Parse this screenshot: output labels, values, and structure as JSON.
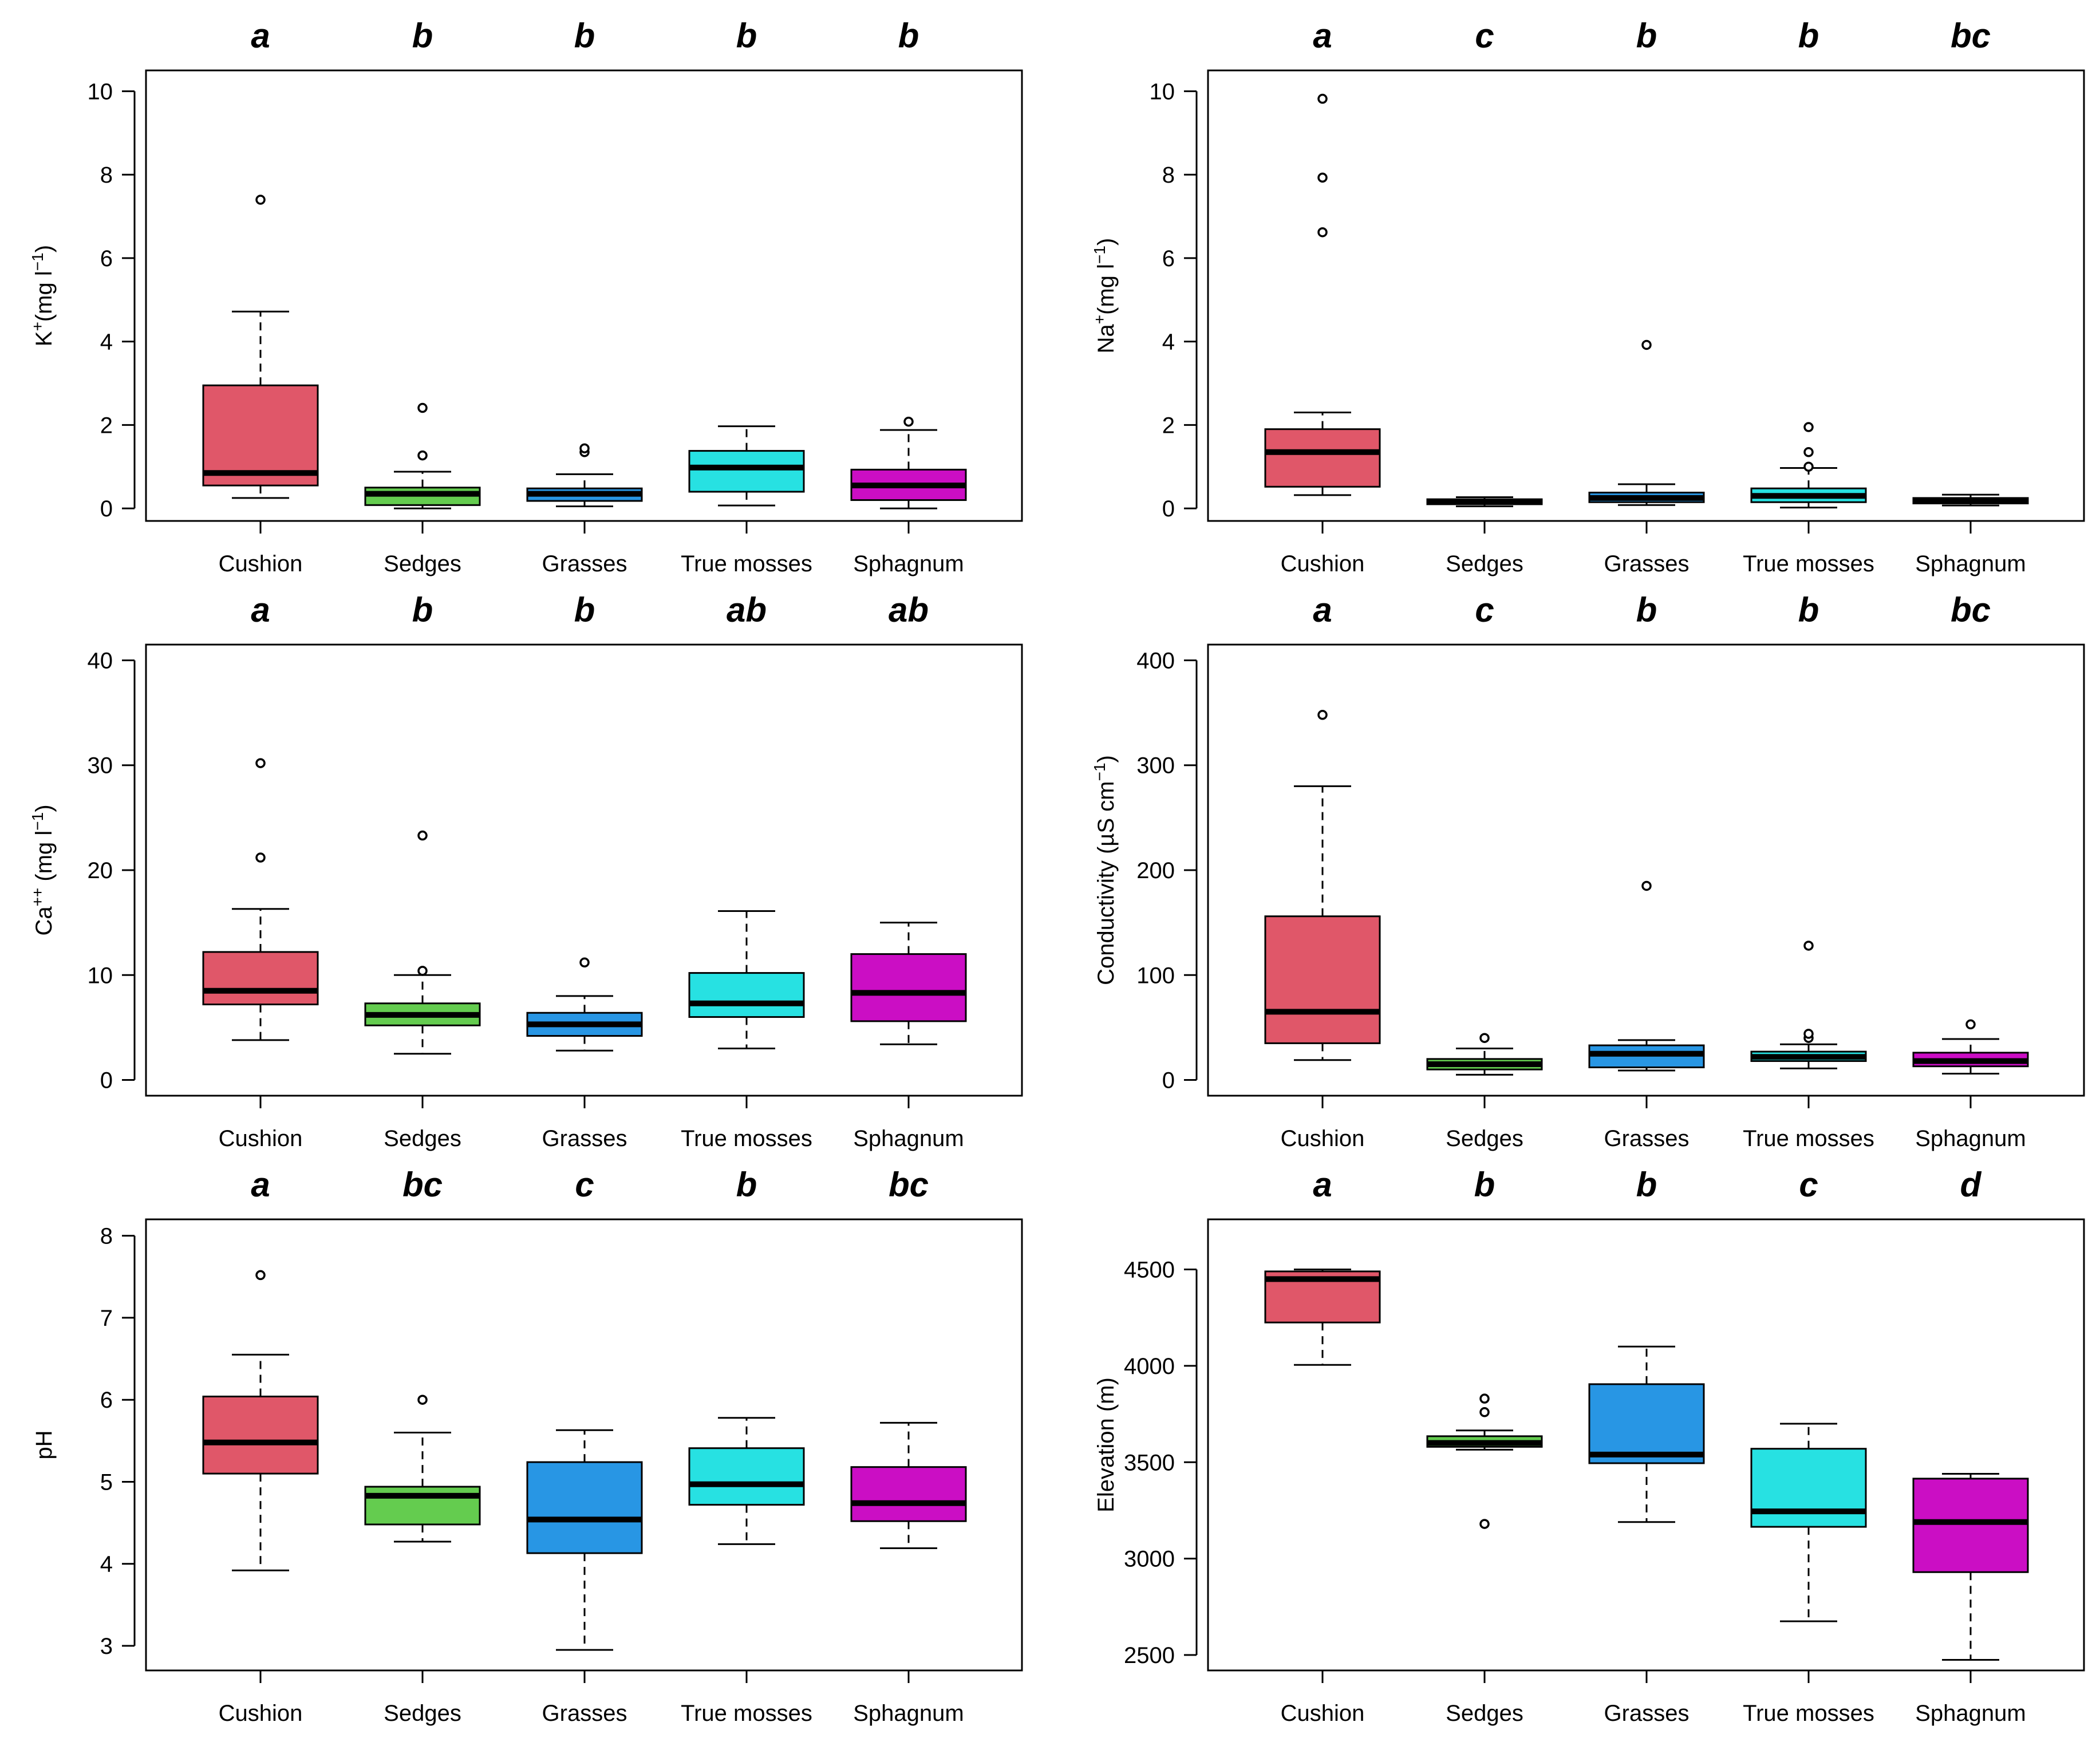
{
  "categories": [
    "Cushion",
    "Sedges",
    "Grasses",
    "True mosses",
    "Sphagnum"
  ],
  "colors": [
    "#e05769",
    "#64cc4f",
    "#2896e4",
    "#27e1e2",
    "#cb0ec4"
  ],
  "chart_data": [
    {
      "type": "boxplot",
      "id": "potassium",
      "ylabel": "K+(mg l-1)",
      "ylabel_parts": [
        "K",
        "+",
        "(mg l",
        "−1",
        ")"
      ],
      "ylim": [
        -0.3,
        10.5
      ],
      "yticks": [
        0,
        2,
        4,
        6,
        8,
        10
      ],
      "ytick_labels": [
        "0",
        "2",
        "4",
        "6",
        "8",
        "10"
      ],
      "letters": [
        "a",
        "b",
        "b",
        "b",
        "b"
      ],
      "boxes": [
        {
          "category": "Cushion",
          "whisker_low": 0.25,
          "q1": 0.55,
          "median": 0.85,
          "q3": 2.95,
          "whisker_high": 4.72,
          "outliers": [
            7.4
          ]
        },
        {
          "category": "Sedges",
          "whisker_low": 0.0,
          "q1": 0.08,
          "median": 0.35,
          "q3": 0.5,
          "whisker_high": 0.88,
          "outliers": [
            1.27,
            2.41
          ]
        },
        {
          "category": "Grasses",
          "whisker_low": 0.05,
          "q1": 0.18,
          "median": 0.35,
          "q3": 0.48,
          "whisker_high": 0.82,
          "outliers": [
            1.35,
            1.44
          ]
        },
        {
          "category": "True mosses",
          "whisker_low": 0.07,
          "q1": 0.4,
          "median": 0.98,
          "q3": 1.38,
          "whisker_high": 1.97,
          "outliers": []
        },
        {
          "category": "Sphagnum",
          "whisker_low": 0.0,
          "q1": 0.2,
          "median": 0.55,
          "q3": 0.93,
          "whisker_high": 1.88,
          "outliers": [
            2.08
          ]
        }
      ]
    },
    {
      "type": "boxplot",
      "id": "sodium",
      "ylabel": "Na+(mg l-1)",
      "ylabel_parts": [
        "Na",
        "+",
        "(mg l",
        "−1",
        ")"
      ],
      "ylim": [
        -0.3,
        10.5
      ],
      "yticks": [
        0,
        2,
        4,
        6,
        8,
        10
      ],
      "ytick_labels": [
        "0",
        "2",
        "4",
        "6",
        "8",
        "10"
      ],
      "letters": [
        "a",
        "c",
        "b",
        "b",
        "bc"
      ],
      "boxes": [
        {
          "category": "Cushion",
          "whisker_low": 0.32,
          "q1": 0.52,
          "median": 1.35,
          "q3": 1.9,
          "whisker_high": 2.3,
          "outliers": [
            6.62,
            7.93,
            9.82
          ]
        },
        {
          "category": "Sedges",
          "whisker_low": 0.05,
          "q1": 0.1,
          "median": 0.16,
          "q3": 0.22,
          "whisker_high": 0.27,
          "outliers": []
        },
        {
          "category": "Grasses",
          "whisker_low": 0.08,
          "q1": 0.15,
          "median": 0.25,
          "q3": 0.38,
          "whisker_high": 0.58,
          "outliers": [
            3.92
          ]
        },
        {
          "category": "True mosses",
          "whisker_low": 0.02,
          "q1": 0.15,
          "median": 0.3,
          "q3": 0.48,
          "whisker_high": 0.97,
          "outliers": [
            1.0,
            1.35,
            1.95
          ]
        },
        {
          "category": "Sphagnum",
          "whisker_low": 0.07,
          "q1": 0.12,
          "median": 0.18,
          "q3": 0.25,
          "whisker_high": 0.33,
          "outliers": []
        }
      ]
    },
    {
      "type": "boxplot",
      "id": "calcium",
      "ylabel": "Ca++ (mg l-1)",
      "ylabel_parts": [
        "Ca",
        "++",
        " (mg l",
        "−1",
        ")"
      ],
      "ylim": [
        -1.5,
        41.5
      ],
      "yticks": [
        0,
        10,
        20,
        30,
        40
      ],
      "ytick_labels": [
        "0",
        "10",
        "20",
        "30",
        "40"
      ],
      "letters": [
        "a",
        "b",
        "b",
        "ab",
        "ab"
      ],
      "boxes": [
        {
          "category": "Cushion",
          "whisker_low": 3.8,
          "q1": 7.2,
          "median": 8.5,
          "q3": 12.2,
          "whisker_high": 16.3,
          "outliers": [
            21.2,
            30.2
          ]
        },
        {
          "category": "Sedges",
          "whisker_low": 2.5,
          "q1": 5.2,
          "median": 6.2,
          "q3": 7.3,
          "whisker_high": 10.0,
          "outliers": [
            10.4,
            23.3
          ]
        },
        {
          "category": "Grasses",
          "whisker_low": 2.8,
          "q1": 4.2,
          "median": 5.3,
          "q3": 6.4,
          "whisker_high": 8.0,
          "outliers": [
            11.2
          ]
        },
        {
          "category": "True mosses",
          "whisker_low": 3.0,
          "q1": 6.0,
          "median": 7.3,
          "q3": 10.2,
          "whisker_high": 16.1,
          "outliers": []
        },
        {
          "category": "Sphagnum",
          "whisker_low": 3.4,
          "q1": 5.6,
          "median": 8.3,
          "q3": 12.0,
          "whisker_high": 15.0,
          "outliers": []
        }
      ]
    },
    {
      "type": "boxplot",
      "id": "conductivity",
      "ylabel": "Conductivity (µS cm-1)",
      "ylabel_parts": [
        "Conductivity (µS cm",
        "−1",
        ")"
      ],
      "ylim": [
        -15,
        415
      ],
      "yticks": [
        0,
        100,
        200,
        300,
        400
      ],
      "ytick_labels": [
        "0",
        "100",
        "200",
        "300",
        "400"
      ],
      "letters": [
        "a",
        "c",
        "b",
        "b",
        "bc"
      ],
      "boxes": [
        {
          "category": "Cushion",
          "whisker_low": 19,
          "q1": 35,
          "median": 65,
          "q3": 156,
          "whisker_high": 280,
          "outliers": [
            348
          ]
        },
        {
          "category": "Sedges",
          "whisker_low": 5,
          "q1": 10,
          "median": 15,
          "q3": 20,
          "whisker_high": 30,
          "outliers": [
            40
          ]
        },
        {
          "category": "Grasses",
          "whisker_low": 9,
          "q1": 12,
          "median": 25,
          "q3": 33,
          "whisker_high": 38,
          "outliers": [
            185
          ]
        },
        {
          "category": "True mosses",
          "whisker_low": 11,
          "q1": 18,
          "median": 22,
          "q3": 27,
          "whisker_high": 34,
          "outliers": [
            40,
            44,
            128
          ]
        },
        {
          "category": "Sphagnum",
          "whisker_low": 6,
          "q1": 13,
          "median": 18,
          "q3": 26,
          "whisker_high": 39,
          "outliers": [
            53
          ]
        }
      ]
    },
    {
      "type": "boxplot",
      "id": "ph",
      "ylabel": "pH",
      "ylabel_parts": [
        "pH"
      ],
      "ylim": [
        2.7,
        8.2
      ],
      "yticks": [
        3,
        4,
        5,
        6,
        7,
        8
      ],
      "ytick_labels": [
        "3",
        "4",
        "5",
        "6",
        "7",
        "8"
      ],
      "letters": [
        "a",
        "bc",
        "c",
        "b",
        "bc"
      ],
      "boxes": [
        {
          "category": "Cushion",
          "whisker_low": 3.92,
          "q1": 5.1,
          "median": 5.48,
          "q3": 6.04,
          "whisker_high": 6.55,
          "outliers": [
            7.52
          ]
        },
        {
          "category": "Sedges",
          "whisker_low": 4.27,
          "q1": 4.48,
          "median": 4.83,
          "q3": 4.94,
          "whisker_high": 5.6,
          "outliers": [
            6.0
          ]
        },
        {
          "category": "Grasses",
          "whisker_low": 2.95,
          "q1": 4.13,
          "median": 4.54,
          "q3": 5.24,
          "whisker_high": 5.63,
          "outliers": []
        },
        {
          "category": "True mosses",
          "whisker_low": 4.24,
          "q1": 4.72,
          "median": 4.97,
          "q3": 5.41,
          "whisker_high": 5.78,
          "outliers": []
        },
        {
          "category": "Sphagnum",
          "whisker_low": 4.19,
          "q1": 4.52,
          "median": 4.74,
          "q3": 5.18,
          "whisker_high": 5.72,
          "outliers": []
        }
      ]
    },
    {
      "type": "boxplot",
      "id": "elevation",
      "ylabel": "Elevation (m)",
      "ylabel_parts": [
        "Elevation (m)"
      ],
      "ylim": [
        2420,
        4760
      ],
      "yticks": [
        2500,
        3000,
        3500,
        4000,
        4500
      ],
      "ytick_labels": [
        "2500",
        "3000",
        "3500",
        "4000",
        "4500"
      ],
      "letters": [
        "a",
        "b",
        "b",
        "c",
        "d"
      ],
      "boxes": [
        {
          "category": "Cushion",
          "whisker_low": 4005,
          "q1": 4225,
          "median": 4450,
          "q3": 4490,
          "whisker_high": 4500,
          "outliers": []
        },
        {
          "category": "Sedges",
          "whisker_low": 3565,
          "q1": 3580,
          "median": 3600,
          "q3": 3635,
          "whisker_high": 3665,
          "outliers": [
            3180,
            3760,
            3830
          ]
        },
        {
          "category": "Grasses",
          "whisker_low": 3190,
          "q1": 3495,
          "median": 3540,
          "q3": 3905,
          "whisker_high": 4100,
          "outliers": []
        },
        {
          "category": "True mosses",
          "whisker_low": 2675,
          "q1": 3165,
          "median": 3245,
          "q3": 3570,
          "whisker_high": 3700,
          "outliers": []
        },
        {
          "category": "Sphagnum",
          "whisker_low": 2475,
          "q1": 2930,
          "median": 3190,
          "q3": 3415,
          "whisker_high": 3440,
          "outliers": []
        }
      ]
    }
  ]
}
